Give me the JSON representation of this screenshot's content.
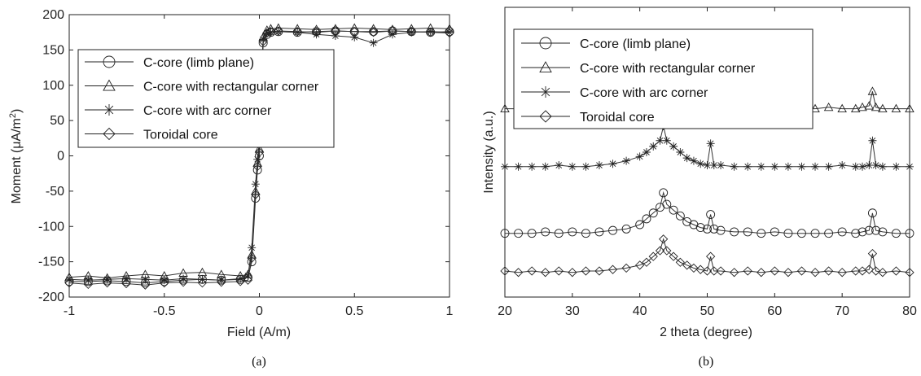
{
  "chart_data": [
    {
      "type": "line",
      "panel_label": "(a)",
      "xlabel": "Field (A/m)",
      "ylabel_prefix": "Moment (",
      "ylabel_unit": "μA/m",
      "ylabel_sup": "2",
      "ylabel_suffix": ")",
      "xlim": [
        -1,
        1
      ],
      "ylim": [
        -200,
        200
      ],
      "xticks": [
        "-1",
        "-0.5",
        "0",
        "0.5",
        "1"
      ],
      "yticks": [
        "-200",
        "-150",
        "-100",
        "-50",
        "0",
        "50",
        "100",
        "150",
        "200"
      ],
      "grid": false,
      "legend_position": "upper-left",
      "x": [
        -1,
        -0.9,
        -0.8,
        -0.7,
        -0.6,
        -0.5,
        -0.4,
        -0.3,
        -0.2,
        -0.1,
        -0.06,
        -0.04,
        -0.02,
        -0.01,
        0,
        0.01,
        0.02,
        0.04,
        0.06,
        0.1,
        0.2,
        0.3,
        0.4,
        0.5,
        0.6,
        0.7,
        0.8,
        0.9,
        1
      ],
      "series": [
        {
          "name": "C-core (limb plane)",
          "marker": "circle",
          "values": [
            -178,
            -178,
            -177,
            -178,
            -180,
            -178,
            -176,
            -175,
            -176,
            -175,
            -172,
            -150,
            -60,
            -20,
            0,
            80,
            160,
            172,
            175,
            176,
            175,
            176,
            177,
            176,
            176,
            177,
            176,
            175,
            176
          ]
        },
        {
          "name": "C-core with rectangular corner",
          "marker": "triangle",
          "values": [
            -172,
            -170,
            -173,
            -170,
            -168,
            -170,
            -166,
            -165,
            -168,
            -170,
            -168,
            -140,
            -50,
            -10,
            10,
            100,
            168,
            178,
            180,
            181,
            180,
            179,
            180,
            181,
            180,
            179,
            180,
            181,
            180
          ]
        },
        {
          "name": "C-core with arc corner",
          "marker": "star",
          "values": [
            -175,
            -176,
            -175,
            -174,
            -175,
            -176,
            -174,
            -175,
            -176,
            -174,
            -170,
            -130,
            -40,
            -5,
            20,
            110,
            165,
            174,
            175,
            176,
            175,
            172,
            170,
            168,
            160,
            172,
            175,
            176,
            175
          ]
        },
        {
          "name": "Toroidal core",
          "marker": "diamond",
          "values": [
            -180,
            -182,
            -180,
            -181,
            -183,
            -180,
            -179,
            -180,
            -179,
            -178,
            -176,
            -145,
            -55,
            -15,
            5,
            90,
            162,
            174,
            176,
            177,
            176,
            175,
            177,
            176,
            175,
            177,
            176,
            175,
            174
          ]
        }
      ]
    },
    {
      "type": "line",
      "panel_label": "(b)",
      "xlabel": "2 theta (degree)",
      "ylabel": "Intensity (a.u.)",
      "xlim": [
        20,
        80
      ],
      "ylim": [
        0,
        10
      ],
      "xticks": [
        "20",
        "30",
        "40",
        "50",
        "60",
        "70",
        "80"
      ],
      "yticks": [],
      "grid": false,
      "legend_position": "upper-left",
      "x": [
        20,
        22,
        24,
        26,
        28,
        30,
        32,
        34,
        36,
        38,
        40,
        41,
        42,
        43,
        43.5,
        44,
        45,
        46,
        47,
        48,
        49,
        50,
        50.5,
        51,
        52,
        54,
        56,
        58,
        60,
        62,
        64,
        66,
        68,
        70,
        72,
        73,
        74,
        74.5,
        75,
        76,
        78,
        80
      ],
      "series": [
        {
          "name": "C-core (limb plane)",
          "marker": "circle",
          "values": [
            2.2,
            2.2,
            2.2,
            2.25,
            2.2,
            2.25,
            2.2,
            2.25,
            2.3,
            2.35,
            2.5,
            2.7,
            2.9,
            3.1,
            3.6,
            3.2,
            3.0,
            2.8,
            2.6,
            2.5,
            2.4,
            2.35,
            2.85,
            2.35,
            2.3,
            2.25,
            2.25,
            2.2,
            2.25,
            2.2,
            2.2,
            2.2,
            2.2,
            2.25,
            2.2,
            2.25,
            2.3,
            2.9,
            2.3,
            2.25,
            2.2,
            2.2
          ]
        },
        {
          "name": "C-core with rectangular corner",
          "marker": "triangle",
          "values": [
            6.5,
            6.5,
            6.55,
            6.5,
            6.55,
            6.5,
            6.55,
            6.6,
            6.6,
            6.7,
            6.85,
            7.0,
            7.1,
            7.3,
            7.35,
            7.4,
            7.5,
            7.3,
            7.1,
            6.9,
            6.75,
            6.7,
            7.15,
            6.65,
            6.6,
            6.55,
            6.55,
            6.55,
            6.5,
            6.55,
            6.5,
            6.5,
            6.55,
            6.5,
            6.5,
            6.55,
            6.6,
            7.1,
            6.55,
            6.5,
            6.5,
            6.5
          ]
        },
        {
          "name": "C-core with arc corner",
          "marker": "star",
          "values": [
            4.5,
            4.5,
            4.5,
            4.5,
            4.55,
            4.5,
            4.5,
            4.55,
            4.6,
            4.7,
            4.85,
            5.0,
            5.2,
            5.4,
            5.9,
            5.4,
            5.2,
            5.0,
            4.8,
            4.7,
            4.6,
            4.55,
            5.3,
            4.55,
            4.55,
            4.5,
            4.5,
            4.5,
            4.5,
            4.5,
            4.5,
            4.5,
            4.5,
            4.55,
            4.5,
            4.5,
            4.55,
            5.4,
            4.55,
            4.5,
            4.5,
            4.5
          ]
        },
        {
          "name": "Toroidal core",
          "marker": "diamond",
          "values": [
            0.9,
            0.85,
            0.9,
            0.85,
            0.9,
            0.85,
            0.9,
            0.9,
            0.95,
            1.0,
            1.1,
            1.2,
            1.4,
            1.6,
            2.0,
            1.6,
            1.4,
            1.2,
            1.1,
            1.0,
            0.95,
            0.9,
            1.4,
            0.9,
            0.9,
            0.85,
            0.9,
            0.85,
            0.9,
            0.85,
            0.9,
            0.85,
            0.9,
            0.85,
            0.9,
            0.9,
            0.95,
            1.5,
            0.9,
            0.85,
            0.9,
            0.85
          ]
        }
      ]
    }
  ]
}
